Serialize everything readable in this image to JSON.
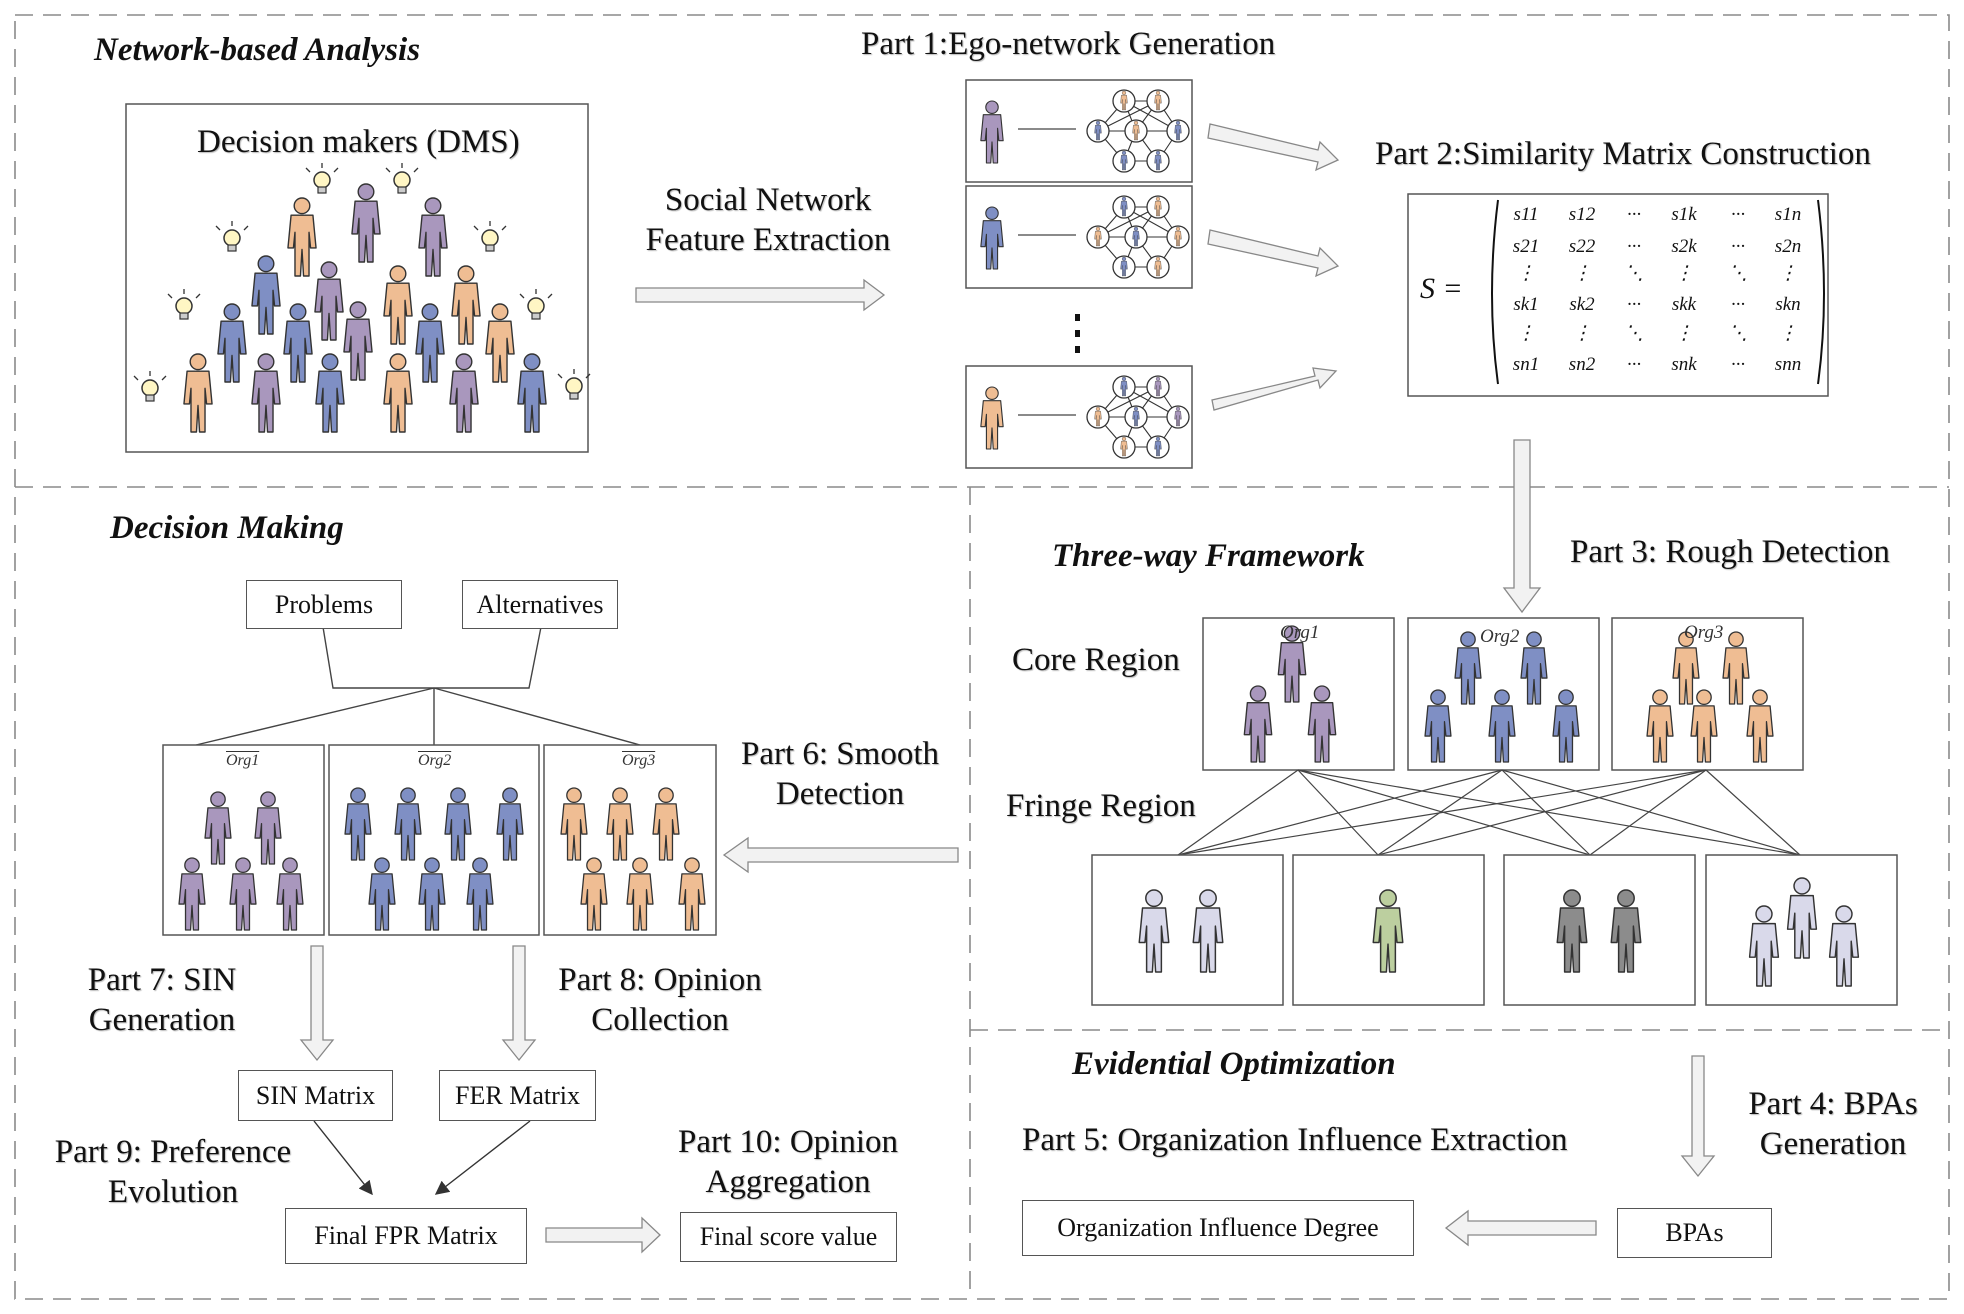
{
  "sections": {
    "network": "Network-based Analysis",
    "decision": "Decision Making",
    "three_way": "Three-way Framework",
    "evidential": "Evidential Optimization"
  },
  "dms_title": "Decision makers (DMS)",
  "parts": {
    "p1": "Part 1:Ego-network Generation",
    "p2": "Part 2:Similarity Matrix Construction",
    "p3": "Part 3: Rough Detection",
    "p4_l1": "Part 4: BPAs",
    "p4_l2": "Generation",
    "p5": "Part 5: Organization Influence Extraction",
    "p6_l1": "Part 6: Smooth",
    "p6_l2": "Detection",
    "p7_l1": "Part 7: SIN",
    "p7_l2": "Generation",
    "p8_l1": "Part 8: Opinion",
    "p8_l2": "Collection",
    "p9_l1": "Part 9: Preference",
    "p9_l2": "Evolution",
    "p10_l1": "Part 10: Opinion",
    "p10_l2": "Aggregation"
  },
  "sn_extract_l1": "Social Network",
  "sn_extract_l2": "Feature Extraction",
  "matrix": {
    "label": "S =",
    "rows": [
      [
        "s11",
        "s12",
        "···",
        "s1k",
        "···",
        "s1n"
      ],
      [
        "s21",
        "s22",
        "···",
        "s2k",
        "···",
        "s2n"
      ],
      [
        "⋮",
        "⋮",
        "⋱",
        "⋮",
        "⋱",
        "⋮"
      ],
      [
        "sk1",
        "sk2",
        "···",
        "skk",
        "···",
        "skn"
      ],
      [
        "⋮",
        "⋮",
        "⋱",
        "⋮",
        "⋱",
        "⋮"
      ],
      [
        "sn1",
        "sn2",
        "···",
        "snk",
        "···",
        "snn"
      ]
    ]
  },
  "regions": {
    "core": "Core Region",
    "fringe": "Fringe Region"
  },
  "org_labels": [
    "Org1",
    "Org2",
    "Org3"
  ],
  "boxes": {
    "problems": "Problems",
    "alternatives": "Alternatives",
    "sin": "SIN Matrix",
    "fer": "FER Matrix",
    "fpr": "Final FPR Matrix",
    "score": "Final score value",
    "bpas": "BPAs",
    "oid": "Organization Influence Degree"
  },
  "colors": {
    "purple": "#a997bd",
    "blue": "#7f8fc4",
    "orange": "#efbd93",
    "green": "#bccf9f",
    "gray": "#8c8c8c",
    "lilac": "#d9d9ea"
  }
}
